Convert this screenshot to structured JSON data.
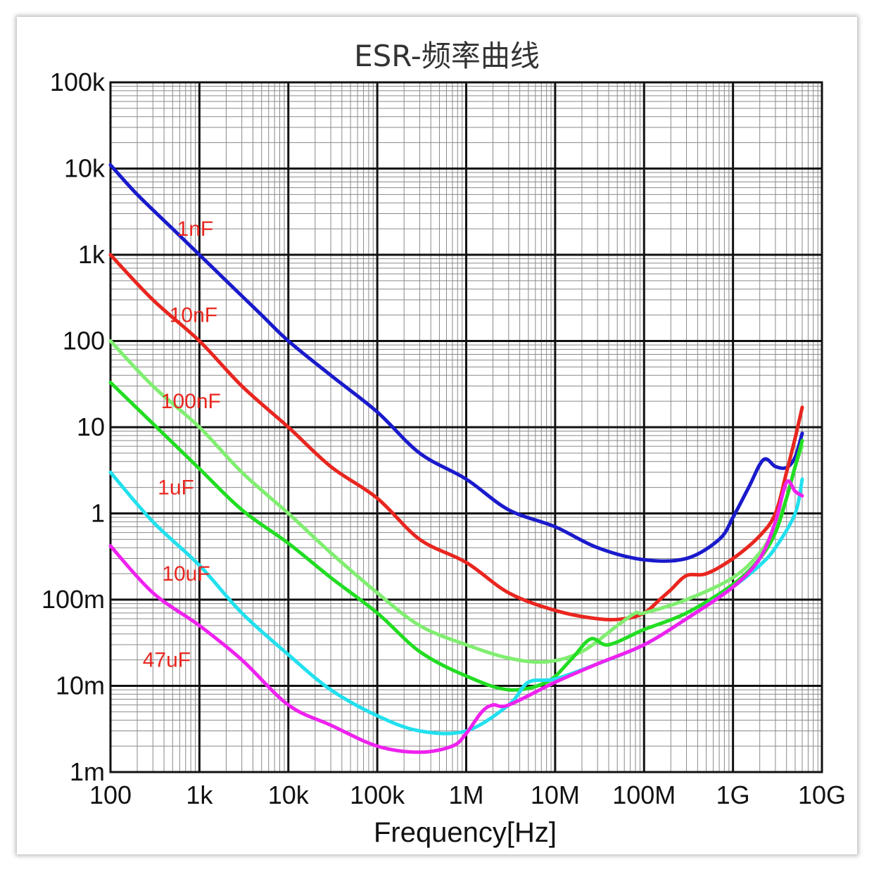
{
  "chart_data": {
    "type": "line",
    "title": "ESR-频率曲线",
    "xlabel": "Frequency[Hz]",
    "ylabel": "",
    "x_scale": "log",
    "y_scale": "log",
    "xlim": [
      100,
      10000000000
    ],
    "ylim": [
      0.001,
      100000
    ],
    "grid": true,
    "x_ticks": [
      {
        "value": 100,
        "label": "100"
      },
      {
        "value": 1000,
        "label": "1k"
      },
      {
        "value": 10000,
        "label": "10k"
      },
      {
        "value": 100000,
        "label": "100k"
      },
      {
        "value": 1000000,
        "label": "1M"
      },
      {
        "value": 10000000,
        "label": "10M"
      },
      {
        "value": 100000000,
        "label": "100M"
      },
      {
        "value": 1000000000,
        "label": "1G"
      },
      {
        "value": 10000000000,
        "label": "10G"
      }
    ],
    "y_ticks": [
      {
        "value": 100000,
        "label": "100k"
      },
      {
        "value": 10000,
        "label": "10k"
      },
      {
        "value": 1000,
        "label": "1k"
      },
      {
        "value": 100,
        "label": "100"
      },
      {
        "value": 10,
        "label": "10"
      },
      {
        "value": 1,
        "label": "1"
      },
      {
        "value": 0.1,
        "label": "100m"
      },
      {
        "value": 0.01,
        "label": "10m"
      },
      {
        "value": 0.001,
        "label": "1m"
      }
    ],
    "series": [
      {
        "name": "1nF",
        "color": "#1a1acc",
        "label_at": [
          560,
          2000
        ],
        "points": [
          [
            100,
            11000
          ],
          [
            200,
            5000
          ],
          [
            500,
            2000
          ],
          [
            1000,
            1000
          ],
          [
            2000,
            500
          ],
          [
            5000,
            200
          ],
          [
            10000,
            100
          ],
          [
            30000,
            40
          ],
          [
            100000,
            15
          ],
          [
            300000,
            5
          ],
          [
            1000000,
            2.5
          ],
          [
            3000000,
            1.1
          ],
          [
            10000000,
            0.7
          ],
          [
            30000000,
            0.4
          ],
          [
            100000000,
            0.29
          ],
          [
            300000000,
            0.3
          ],
          [
            700000000,
            0.5
          ],
          [
            1000000000,
            0.9
          ],
          [
            1500000000,
            2.0
          ],
          [
            2200000000,
            4.2
          ],
          [
            3000000000,
            3.5
          ],
          [
            4000000000,
            3.4
          ],
          [
            5000000000,
            4.5
          ],
          [
            6000000000,
            8.5
          ]
        ]
      },
      {
        "name": "10nF",
        "color": "#e8261f",
        "label_at": [
          460,
          200
        ],
        "points": [
          [
            100,
            1000
          ],
          [
            300,
            300
          ],
          [
            1000,
            100
          ],
          [
            3000,
            30
          ],
          [
            10000,
            10
          ],
          [
            30000,
            3.5
          ],
          [
            100000,
            1.5
          ],
          [
            300000,
            0.5
          ],
          [
            1000000,
            0.27
          ],
          [
            3000000,
            0.12
          ],
          [
            10000000,
            0.075
          ],
          [
            30000000,
            0.06
          ],
          [
            60000000,
            0.06
          ],
          [
            100000000,
            0.07
          ],
          [
            150000000,
            0.1
          ],
          [
            200000000,
            0.13
          ],
          [
            300000000,
            0.19
          ],
          [
            500000000,
            0.2
          ],
          [
            1000000000,
            0.3
          ],
          [
            2000000000,
            0.55
          ],
          [
            3000000000,
            1.0
          ],
          [
            4000000000,
            3.0
          ],
          [
            5000000000,
            7.5
          ],
          [
            6000000000,
            17
          ]
        ]
      },
      {
        "name": "100nF",
        "color": "#80ee70",
        "label_at": [
          370,
          20
        ],
        "points": [
          [
            100,
            100
          ],
          [
            300,
            30
          ],
          [
            1000,
            10
          ],
          [
            3000,
            3
          ],
          [
            10000,
            1
          ],
          [
            30000,
            0.35
          ],
          [
            100000,
            0.12
          ],
          [
            300000,
            0.05
          ],
          [
            1000000,
            0.03
          ],
          [
            3000000,
            0.021
          ],
          [
            8000000,
            0.019
          ],
          [
            20000000,
            0.025
          ],
          [
            50000000,
            0.05
          ],
          [
            80000000,
            0.07
          ],
          [
            100000000,
            0.07
          ],
          [
            300000000,
            0.1
          ],
          [
            1000000000,
            0.18
          ],
          [
            2000000000,
            0.35
          ],
          [
            3000000000,
            0.7
          ],
          [
            4000000000,
            1.5
          ],
          [
            5000000000,
            3.5
          ],
          [
            6000000000,
            6.0
          ]
        ]
      },
      {
        "name": "1uF",
        "color": "#22dd22",
        "label_at": [
          340,
          2
        ],
        "points": [
          [
            100,
            33
          ],
          [
            300,
            11
          ],
          [
            1000,
            3.3
          ],
          [
            3000,
            1.1
          ],
          [
            10000,
            0.45
          ],
          [
            30000,
            0.18
          ],
          [
            100000,
            0.07
          ],
          [
            300000,
            0.025
          ],
          [
            1000000,
            0.013
          ],
          [
            3000000,
            0.009
          ],
          [
            8000000,
            0.011
          ],
          [
            15000000,
            0.02
          ],
          [
            25000000,
            0.035
          ],
          [
            40000000,
            0.03
          ],
          [
            100000000,
            0.045
          ],
          [
            300000000,
            0.07
          ],
          [
            1000000000,
            0.15
          ],
          [
            2000000000,
            0.3
          ],
          [
            3000000000,
            0.6
          ],
          [
            4000000000,
            1.5
          ],
          [
            5000000000,
            3.5
          ],
          [
            6000000000,
            7
          ]
        ]
      },
      {
        "name": "10uF",
        "color": "#22e0ee",
        "label_at": [
          380,
          0.2
        ],
        "points": [
          [
            100,
            3
          ],
          [
            300,
            0.8
          ],
          [
            1000,
            0.25
          ],
          [
            3000,
            0.07
          ],
          [
            10000,
            0.023
          ],
          [
            30000,
            0.009
          ],
          [
            100000,
            0.0045
          ],
          [
            300000,
            0.003
          ],
          [
            1000000,
            0.003
          ],
          [
            3000000,
            0.006
          ],
          [
            5000000,
            0.011
          ],
          [
            10000000,
            0.012
          ],
          [
            30000000,
            0.018
          ],
          [
            100000000,
            0.03
          ],
          [
            300000000,
            0.06
          ],
          [
            1000000000,
            0.14
          ],
          [
            2000000000,
            0.25
          ],
          [
            3000000000,
            0.4
          ],
          [
            5000000000,
            1.0
          ],
          [
            6000000000,
            2.5
          ]
        ]
      },
      {
        "name": "47uF",
        "color": "#ee22ee",
        "label_at": [
          230,
          0.02
        ],
        "points": [
          [
            100,
            0.42
          ],
          [
            300,
            0.12
          ],
          [
            1000,
            0.05
          ],
          [
            3000,
            0.02
          ],
          [
            10000,
            0.006
          ],
          [
            30000,
            0.0035
          ],
          [
            100000,
            0.002
          ],
          [
            300000,
            0.0017
          ],
          [
            700000,
            0.002
          ],
          [
            1000000,
            0.0028
          ],
          [
            1500000,
            0.005
          ],
          [
            2000000,
            0.006
          ],
          [
            3000000,
            0.006
          ],
          [
            10000000,
            0.011
          ],
          [
            30000000,
            0.018
          ],
          [
            100000000,
            0.03
          ],
          [
            300000000,
            0.06
          ],
          [
            1000000000,
            0.14
          ],
          [
            2000000000,
            0.3
          ],
          [
            3000000000,
            0.8
          ],
          [
            4000000000,
            2.3
          ],
          [
            5000000000,
            1.8
          ],
          [
            6000000000,
            1.6
          ]
        ]
      }
    ]
  }
}
